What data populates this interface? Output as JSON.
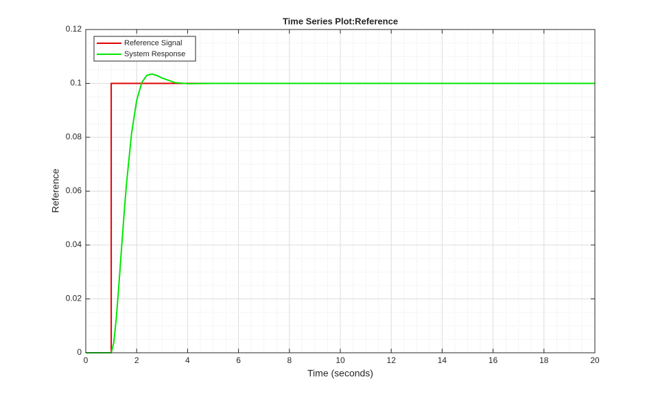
{
  "chart_data": {
    "type": "line",
    "title": "Time Series Plot:Reference",
    "x_label": "Time (seconds)",
    "y_label": "Reference",
    "xlim": [
      0,
      20
    ],
    "xticks": [
      0,
      2,
      4,
      6,
      8,
      10,
      12,
      14,
      16,
      18,
      20
    ],
    "ylim": [
      0,
      0.12
    ],
    "yticks": [
      0,
      0.02,
      0.04,
      0.06,
      0.08,
      0.1,
      0.12
    ],
    "grid": true,
    "minor_grid": true,
    "legend_position": "upper-left",
    "series": [
      {
        "name": "Reference Signal",
        "color": "#e00000",
        "x": [
          0,
          1,
          1,
          20
        ],
        "values": [
          0,
          0,
          0.1,
          0.1
        ]
      },
      {
        "name": "System Response",
        "color": "#00e600",
        "x": [
          0,
          1,
          1.1,
          1.2,
          1.3,
          1.4,
          1.5,
          1.6,
          1.8,
          2.0,
          2.2,
          2.4,
          2.6,
          2.8,
          3.0,
          3.5,
          4.0,
          5.0,
          20
        ],
        "values": [
          0,
          0,
          0.0037,
          0.0129,
          0.025,
          0.0381,
          0.0509,
          0.0627,
          0.0815,
          0.0937,
          0.1003,
          0.103,
          0.1035,
          0.1029,
          0.102,
          0.1003,
          0.0999,
          0.1,
          0.1
        ]
      }
    ]
  }
}
